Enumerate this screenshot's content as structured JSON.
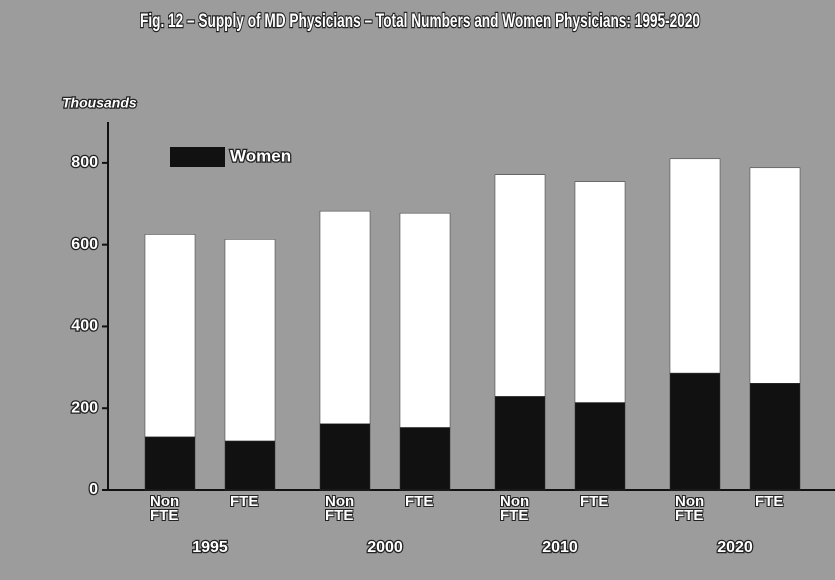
{
  "chart_data": {
    "type": "bar",
    "stacked": true,
    "title": "Fig. 12 – Supply of MD Physicians – Total Numbers and Women Physicians: 1995-2020",
    "ylabel": "Thousands",
    "groups": [
      "1995",
      "2000",
      "2010",
      "2020"
    ],
    "categories": [
      "Non FTE",
      "FTE",
      "Non FTE",
      "FTE",
      "Non FTE",
      "FTE",
      "Non FTE",
      "FTE"
    ],
    "series": [
      {
        "name": "Women",
        "color": "#111111",
        "values": [
          130,
          120,
          162,
          153,
          229,
          214,
          286,
          261
        ]
      },
      {
        "color": "#ffffff",
        "values": [
          495,
          493,
          520,
          524,
          542,
          540,
          524,
          527
        ]
      }
    ],
    "ylim": [
      0,
      900
    ],
    "yticks": [
      0,
      200,
      400,
      600,
      800
    ],
    "grid": false,
    "legend": "upper left"
  }
}
